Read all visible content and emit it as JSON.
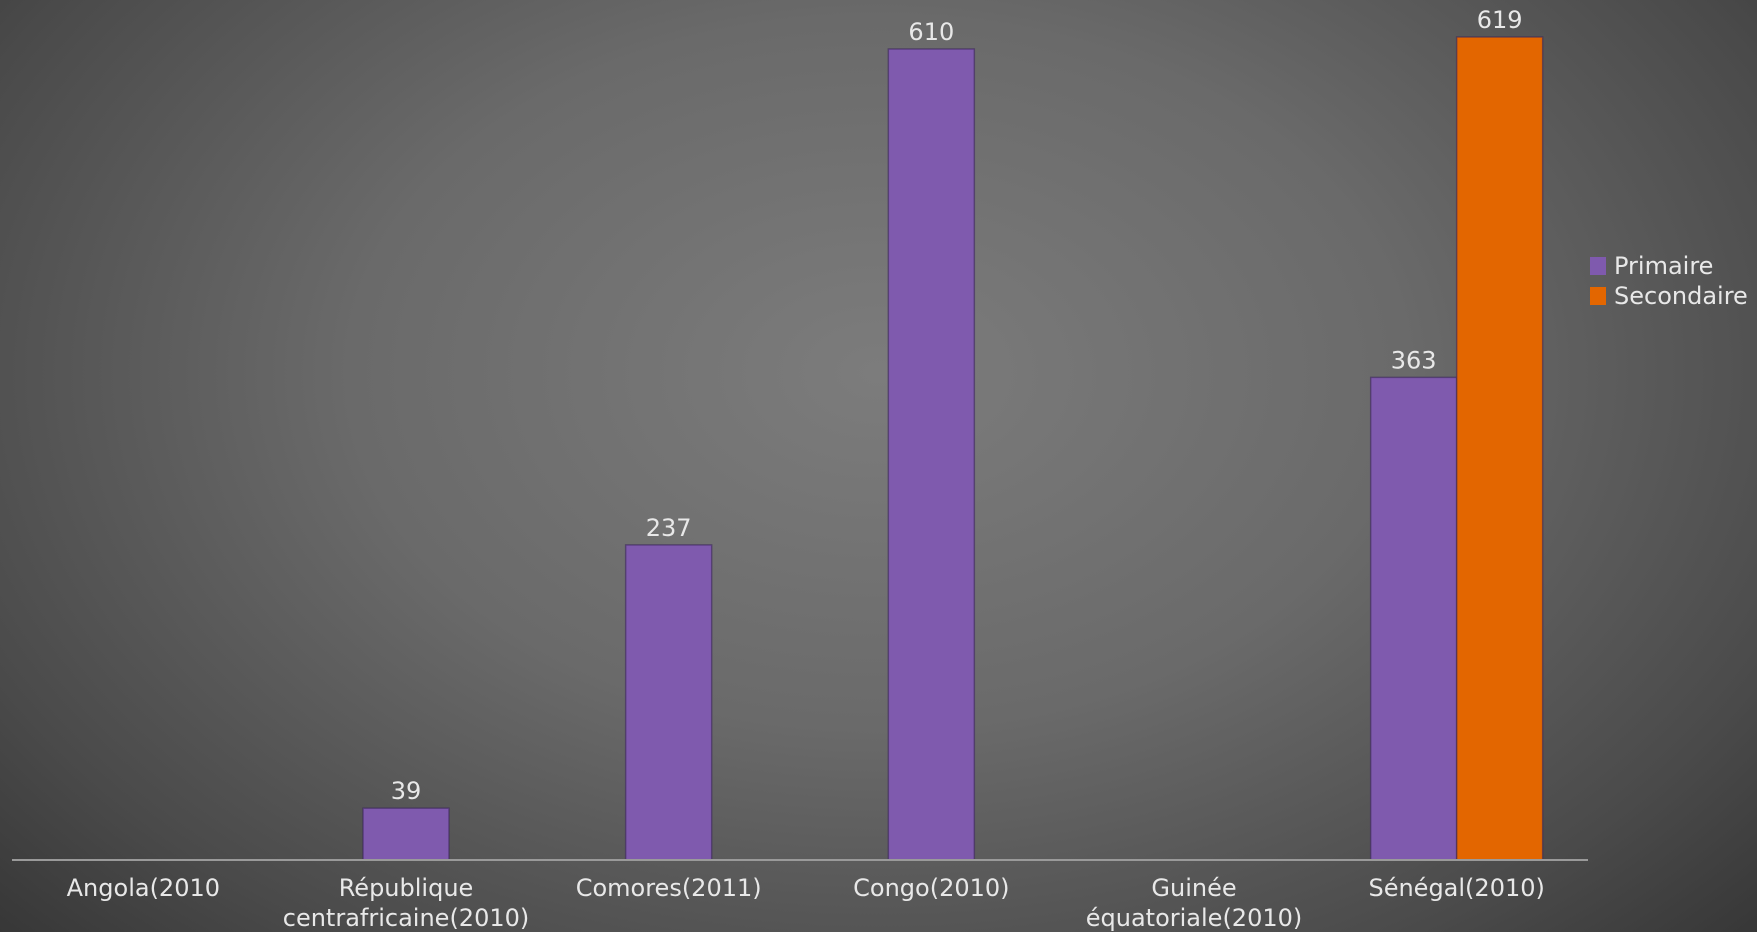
{
  "chart_data": {
    "type": "bar",
    "categories": [
      [
        "Angola(2010"
      ],
      [
        "République",
        "centrafricaine(2010)"
      ],
      [
        "Comores(2011)"
      ],
      [
        "Congo(2010)"
      ],
      [
        "Guinée",
        "équatoriale(2010)"
      ],
      [
        "Sénégal(2010)"
      ]
    ],
    "series": [
      {
        "name": "Primaire",
        "color": "#7f5aae",
        "values": [
          null,
          39,
          237,
          610,
          null,
          363
        ]
      },
      {
        "name": "Secondaire",
        "color": "#e36600",
        "values": [
          null,
          null,
          null,
          null,
          null,
          619
        ]
      }
    ],
    "ylim": [
      0,
      619
    ],
    "grid": false,
    "legend_position": "right"
  }
}
